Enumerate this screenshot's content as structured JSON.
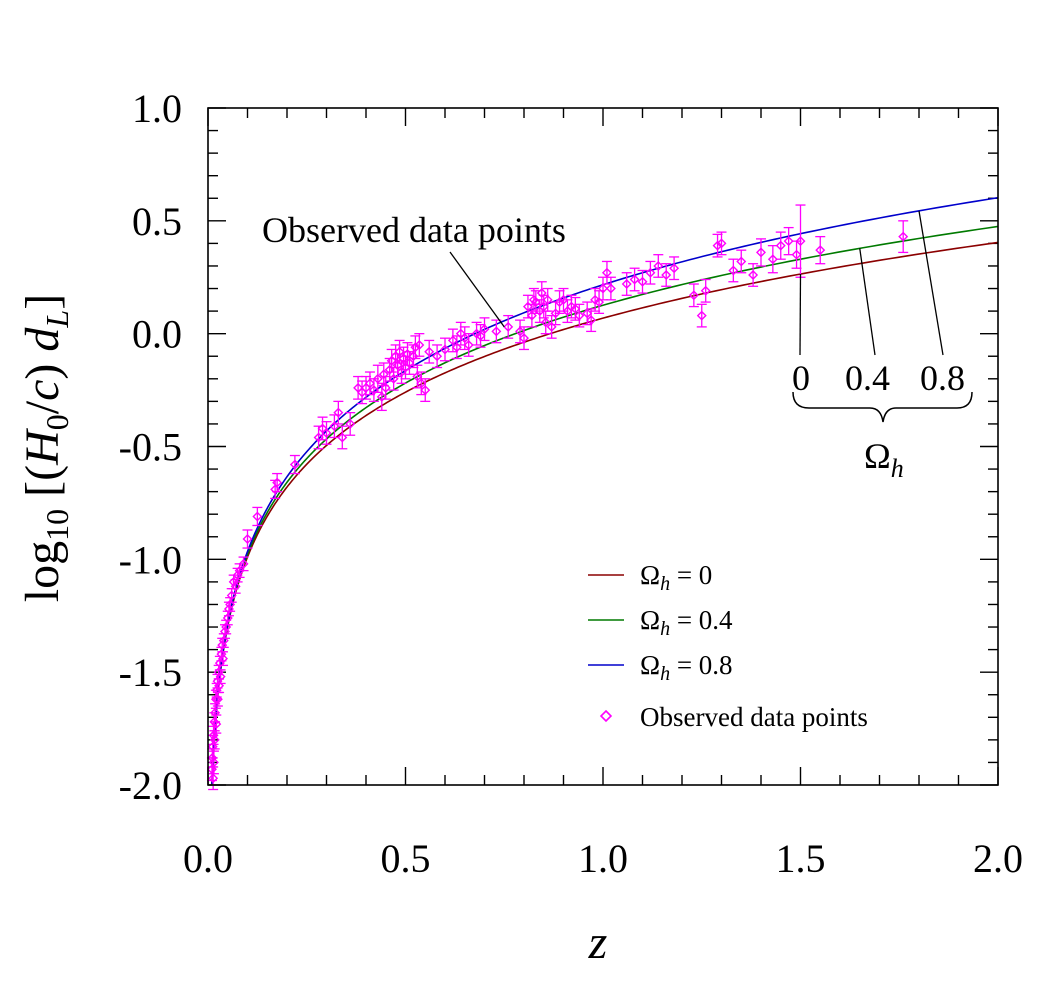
{
  "chart_data": {
    "type": "line",
    "xlabel": "z",
    "ylabel": {
      "prefix": "log",
      "prefix_sub": "10",
      "open": " [(",
      "h": "H",
      "h_sub": "0",
      "slash": "/",
      "c": "c",
      "close_paren": ") ",
      "d": "d",
      "d_sub": "L",
      "close": "]"
    },
    "xlim": [
      0.0,
      2.0
    ],
    "ylim": [
      -2.0,
      1.0
    ],
    "x_major_ticks": [
      0.0,
      0.5,
      1.0,
      1.5,
      2.0
    ],
    "y_major_ticks": [
      -2.0,
      -1.5,
      -1.0,
      -0.5,
      0.0,
      0.5,
      1.0
    ],
    "x_tick_labels": [
      "0.0",
      "0.5",
      "1.0",
      "1.5",
      "2.0"
    ],
    "y_tick_labels": [
      "-2.0",
      "-1.5",
      "-1.0",
      "-0.5",
      "0.0",
      "0.5",
      "1.0"
    ],
    "series": [
      {
        "name": "Ωh = 0",
        "omega": "Ω",
        "sub": "h",
        "rest": " = 0",
        "color": "#8b0000",
        "omega_h": 0.0
      },
      {
        "name": "Ωh = 0.4",
        "omega": "Ω",
        "sub": "h",
        "rest": " = 0.4",
        "color": "#007a00",
        "omega_h": 0.4
      },
      {
        "name": "Ωh = 0.8",
        "omega": "Ω",
        "sub": "h",
        "rest": " = 0.8",
        "color": "#0000cc",
        "omega_h": 0.8
      }
    ],
    "observed": {
      "name": "Observed data points",
      "color": "#ff00ff",
      "points": [
        [
          0.01,
          -1.93,
          0.05
        ],
        [
          0.011,
          -1.88,
          0.04
        ],
        [
          0.012,
          -1.83,
          0.05
        ],
        [
          0.013,
          -1.97,
          0.05
        ],
        [
          0.014,
          -1.78,
          0.04
        ],
        [
          0.015,
          -1.9,
          0.05
        ],
        [
          0.016,
          -1.72,
          0.04
        ],
        [
          0.017,
          -1.8,
          0.04
        ],
        [
          0.018,
          -1.68,
          0.04
        ],
        [
          0.02,
          -1.62,
          0.04
        ],
        [
          0.021,
          -1.73,
          0.04
        ],
        [
          0.022,
          -1.58,
          0.03
        ],
        [
          0.024,
          -1.54,
          0.03
        ],
        [
          0.025,
          -1.62,
          0.03
        ],
        [
          0.027,
          -1.5,
          0.03
        ],
        [
          0.028,
          -1.56,
          0.03
        ],
        [
          0.03,
          -1.46,
          0.03
        ],
        [
          0.032,
          -1.52,
          0.03
        ],
        [
          0.034,
          -1.42,
          0.03
        ],
        [
          0.036,
          -1.38,
          0.03
        ],
        [
          0.038,
          -1.44,
          0.03
        ],
        [
          0.04,
          -1.36,
          0.03
        ],
        [
          0.043,
          -1.32,
          0.03
        ],
        [
          0.046,
          -1.3,
          0.03
        ],
        [
          0.05,
          -1.26,
          0.03
        ],
        [
          0.053,
          -1.22,
          0.03
        ],
        [
          0.056,
          -1.2,
          0.03
        ],
        [
          0.06,
          -1.16,
          0.03
        ],
        [
          0.065,
          -1.1,
          0.03
        ],
        [
          0.07,
          -1.12,
          0.03
        ],
        [
          0.075,
          -1.07,
          0.03
        ],
        [
          0.08,
          -1.05,
          0.03
        ],
        [
          0.09,
          -1.02,
          0.03
        ],
        [
          0.1,
          -0.91,
          0.04
        ],
        [
          0.125,
          -0.81,
          0.04
        ],
        [
          0.17,
          -0.69,
          0.04
        ],
        [
          0.175,
          -0.66,
          0.04
        ],
        [
          0.22,
          -0.58,
          0.04
        ],
        [
          0.28,
          -0.46,
          0.05
        ],
        [
          0.29,
          -0.42,
          0.05
        ],
        [
          0.3,
          -0.44,
          0.05
        ],
        [
          0.32,
          -0.41,
          0.05
        ],
        [
          0.33,
          -0.35,
          0.05
        ],
        [
          0.34,
          -0.46,
          0.05
        ],
        [
          0.36,
          -0.4,
          0.05
        ],
        [
          0.38,
          -0.24,
          0.05
        ],
        [
          0.39,
          -0.26,
          0.05
        ],
        [
          0.4,
          -0.24,
          0.05
        ],
        [
          0.41,
          -0.22,
          0.05
        ],
        [
          0.42,
          -0.25,
          0.05
        ],
        [
          0.43,
          -0.2,
          0.06
        ],
        [
          0.44,
          -0.28,
          0.06
        ],
        [
          0.445,
          -0.18,
          0.05
        ],
        [
          0.45,
          -0.24,
          0.05
        ],
        [
          0.46,
          -0.16,
          0.05
        ],
        [
          0.465,
          -0.12,
          0.05
        ],
        [
          0.47,
          -0.2,
          0.05
        ],
        [
          0.475,
          -0.1,
          0.05
        ],
        [
          0.48,
          -0.14,
          0.05
        ],
        [
          0.485,
          -0.08,
          0.05
        ],
        [
          0.49,
          -0.17,
          0.05
        ],
        [
          0.495,
          -0.11,
          0.05
        ],
        [
          0.5,
          -0.15,
          0.05
        ],
        [
          0.505,
          -0.09,
          0.05
        ],
        [
          0.51,
          -0.13,
          0.05
        ],
        [
          0.52,
          -0.1,
          0.05
        ],
        [
          0.525,
          -0.06,
          0.05
        ],
        [
          0.53,
          -0.19,
          0.05
        ],
        [
          0.535,
          -0.05,
          0.05
        ],
        [
          0.54,
          -0.22,
          0.05
        ],
        [
          0.55,
          -0.25,
          0.05
        ],
        [
          0.56,
          -0.08,
          0.05
        ],
        [
          0.58,
          -0.1,
          0.05
        ],
        [
          0.6,
          -0.07,
          0.05
        ],
        [
          0.62,
          -0.03,
          0.05
        ],
        [
          0.63,
          -0.06,
          0.05
        ],
        [
          0.64,
          0.0,
          0.05
        ],
        [
          0.65,
          -0.02,
          0.05
        ],
        [
          0.66,
          -0.05,
          0.05
        ],
        [
          0.68,
          0.0,
          0.05
        ],
        [
          0.69,
          -0.01,
          0.05
        ],
        [
          0.7,
          0.02,
          0.05
        ],
        [
          0.73,
          0.01,
          0.05
        ],
        [
          0.76,
          0.03,
          0.05
        ],
        [
          0.79,
          0.01,
          0.05
        ],
        [
          0.8,
          -0.02,
          0.05
        ],
        [
          0.81,
          0.12,
          0.05
        ],
        [
          0.82,
          0.08,
          0.05
        ],
        [
          0.825,
          0.15,
          0.05
        ],
        [
          0.83,
          0.14,
          0.05
        ],
        [
          0.84,
          0.1,
          0.05
        ],
        [
          0.845,
          0.18,
          0.05
        ],
        [
          0.85,
          0.12,
          0.05
        ],
        [
          0.855,
          0.05,
          0.05
        ],
        [
          0.86,
          0.15,
          0.05
        ],
        [
          0.87,
          0.03,
          0.05
        ],
        [
          0.88,
          0.09,
          0.05
        ],
        [
          0.89,
          0.14,
          0.05
        ],
        [
          0.9,
          0.15,
          0.05
        ],
        [
          0.91,
          0.1,
          0.05
        ],
        [
          0.92,
          0.12,
          0.05
        ],
        [
          0.93,
          0.11,
          0.05
        ],
        [
          0.94,
          0.08,
          0.05
        ],
        [
          0.96,
          0.09,
          0.05
        ],
        [
          0.97,
          0.06,
          0.05
        ],
        [
          0.98,
          0.15,
          0.05
        ],
        [
          0.99,
          0.14,
          0.05
        ],
        [
          1.0,
          0.2,
          0.05
        ],
        [
          1.01,
          0.27,
          0.05
        ],
        [
          1.02,
          0.2,
          0.05
        ],
        [
          1.06,
          0.22,
          0.05
        ],
        [
          1.08,
          0.24,
          0.05
        ],
        [
          1.1,
          0.23,
          0.05
        ],
        [
          1.12,
          0.27,
          0.05
        ],
        [
          1.14,
          0.3,
          0.05
        ],
        [
          1.16,
          0.26,
          0.05
        ],
        [
          1.18,
          0.29,
          0.05
        ],
        [
          1.23,
          0.17,
          0.05
        ],
        [
          1.25,
          0.08,
          0.05
        ],
        [
          1.26,
          0.19,
          0.05
        ],
        [
          1.29,
          0.39,
          0.05
        ],
        [
          1.3,
          0.4,
          0.05
        ],
        [
          1.33,
          0.28,
          0.05
        ],
        [
          1.35,
          0.32,
          0.05
        ],
        [
          1.38,
          0.26,
          0.05
        ],
        [
          1.4,
          0.36,
          0.06
        ],
        [
          1.43,
          0.33,
          0.06
        ],
        [
          1.45,
          0.39,
          0.06
        ],
        [
          1.47,
          0.41,
          0.06
        ],
        [
          1.49,
          0.35,
          0.06
        ],
        [
          1.5,
          0.41,
          0.16
        ],
        [
          1.55,
          0.37,
          0.06
        ],
        [
          1.76,
          0.43,
          0.07
        ]
      ]
    },
    "annotations": {
      "observed_label": "Observed data points",
      "omega_values": [
        "0",
        "0.4",
        "0.8"
      ],
      "omega_symbol": "Ω",
      "omega_sub": "h"
    },
    "legend_position": "lower-right"
  }
}
